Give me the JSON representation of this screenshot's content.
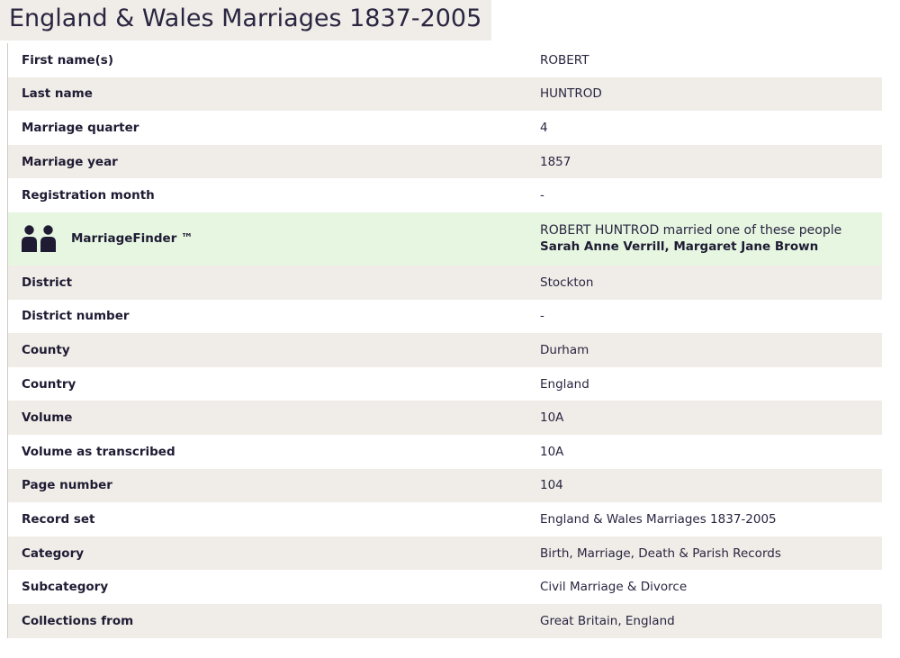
{
  "title": "England & Wales Marriages 1837-2005",
  "finder": {
    "label": "MarriageFinder ™",
    "icon": "two-people-icon",
    "sentence": "ROBERT HUNTROD married one of these people",
    "spouses": "Sarah Anne Verrill, Margaret Jane Brown"
  },
  "rows_top": [
    {
      "label": "First name(s)",
      "value": "ROBERT"
    },
    {
      "label": "Last name",
      "value": "HUNTROD"
    },
    {
      "label": "Marriage quarter",
      "value": "4"
    },
    {
      "label": "Marriage year",
      "value": "1857"
    },
    {
      "label": "Registration month",
      "value": "-"
    }
  ],
  "rows_bottom": [
    {
      "label": "District",
      "value": "Stockton"
    },
    {
      "label": "District number",
      "value": "-"
    },
    {
      "label": "County",
      "value": "Durham"
    },
    {
      "label": "Country",
      "value": "England"
    },
    {
      "label": "Volume",
      "value": "10A"
    },
    {
      "label": "Volume as transcribed",
      "value": "10A"
    },
    {
      "label": "Page number",
      "value": "104"
    },
    {
      "label": "Record set",
      "value": "England & Wales Marriages 1837-2005"
    },
    {
      "label": "Category",
      "value": "Birth, Marriage, Death & Parish Records"
    },
    {
      "label": "Subcategory",
      "value": "Civil Marriage & Divorce"
    },
    {
      "label": "Collections from",
      "value": "Great Britain, England"
    }
  ],
  "colors": {
    "stripe": "#f0ede8",
    "finder_bg": "#e6f6e1",
    "text": "#1f1b33",
    "icon": "#1f1b33"
  }
}
